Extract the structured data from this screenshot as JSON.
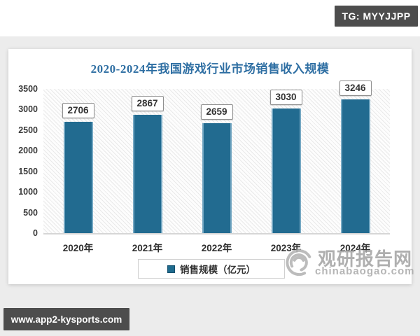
{
  "badges": {
    "telegram": "TG: MYYJJPP",
    "website": "www.app2-kysports.com"
  },
  "watermark": {
    "name": "观研报告网",
    "domain": "chinabaogao.com",
    "logo_icon": "swirl-logo"
  },
  "colors": {
    "bar": "#226b90",
    "title": "#2f6fa3",
    "badge_bg": "#4d4d4d",
    "watermark": "#a9a9a9"
  },
  "chart_data": {
    "type": "bar",
    "title": "2020-2024年我国游戏行业市场销售收入规模",
    "categories": [
      "2020年",
      "2021年",
      "2022年",
      "2023年",
      "2024年"
    ],
    "values": [
      2706,
      2867,
      2659,
      3030,
      3246
    ],
    "series_name": "销售规模（亿元）",
    "xlabel": "",
    "ylabel": "",
    "ylim": [
      0,
      3500
    ],
    "yticks": [
      0,
      500,
      1000,
      1500,
      2000,
      2500,
      3000,
      3500
    ],
    "grid": false,
    "legend_position": "bottom",
    "data_labels": true,
    "plot_background": "diagonal-hatch"
  }
}
